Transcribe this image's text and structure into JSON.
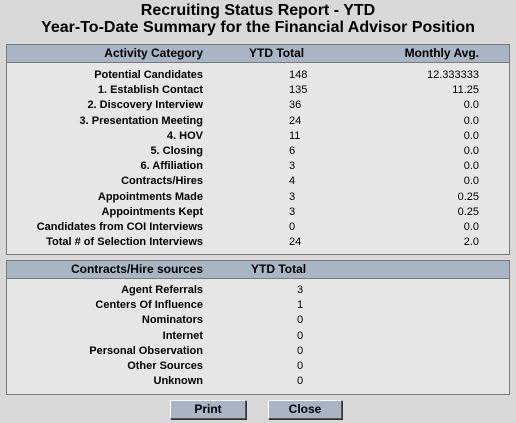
{
  "header": {
    "title": "Recruiting Status Report - YTD",
    "subtitle": "Year-To-Date Summary for the Financial Advisor Position"
  },
  "activity": {
    "col_category": "Activity Category",
    "col_ytd": "YTD Total",
    "col_monthly": "Monthly Avg.",
    "rows": [
      {
        "label": "Potential Candidates",
        "ytd": "148",
        "monthly": "12.333333"
      },
      {
        "label": "1. Establish Contact",
        "ytd": "135",
        "monthly": "11.25"
      },
      {
        "label": "2. Discovery Interview",
        "ytd": "36",
        "monthly": "0.0"
      },
      {
        "label": "3. Presentation Meeting",
        "ytd": "24",
        "monthly": "0.0"
      },
      {
        "label": "4. HOV",
        "ytd": "11",
        "monthly": "0.0"
      },
      {
        "label": "5. Closing",
        "ytd": "6",
        "monthly": "0.0"
      },
      {
        "label": "6. Affiliation",
        "ytd": "3",
        "monthly": "0.0"
      },
      {
        "label": "Contracts/Hires",
        "ytd": "4",
        "monthly": "0.0"
      },
      {
        "label": "Appointments Made",
        "ytd": "3",
        "monthly": "0.25"
      },
      {
        "label": "Appointments Kept",
        "ytd": "3",
        "monthly": "0.25"
      },
      {
        "label": "Candidates from COI Interviews",
        "ytd": "0",
        "monthly": "0.0"
      },
      {
        "label": "Total # of Selection Interviews",
        "ytd": "24",
        "monthly": "2.0"
      }
    ]
  },
  "sources": {
    "col_source": "Contracts/Hire sources",
    "col_ytd": "YTD Total",
    "rows": [
      {
        "label": "Agent Referrals",
        "ytd": "3"
      },
      {
        "label": "Centers Of Influence",
        "ytd": "1"
      },
      {
        "label": "Nominators",
        "ytd": "0"
      },
      {
        "label": "Internet",
        "ytd": "0"
      },
      {
        "label": "Personal Observation",
        "ytd": "0"
      },
      {
        "label": "Other Sources",
        "ytd": "0"
      },
      {
        "label": "Unknown",
        "ytd": "0"
      }
    ]
  },
  "buttons": {
    "print_label": "Print",
    "close_label": "Close"
  }
}
